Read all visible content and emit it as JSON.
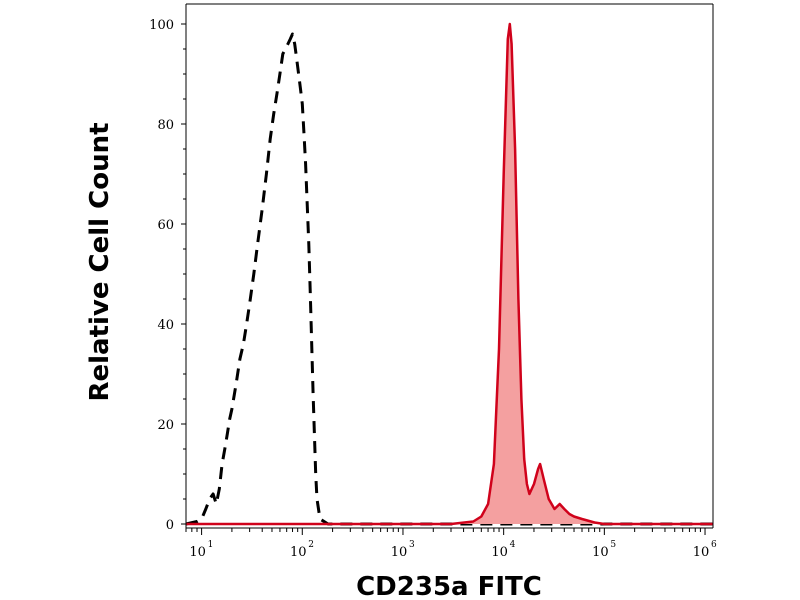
{
  "chart_data": {
    "type": "area",
    "title": "",
    "xlabel": "CD235a FITC",
    "ylabel": "Relative Cell Count",
    "x_scale": "log",
    "xlim": [
      7,
      1200000
    ],
    "ylim": [
      0,
      100
    ],
    "grid": false,
    "legend": "none",
    "x_ticks": [
      {
        "value": 10,
        "base": "10",
        "exp": "1"
      },
      {
        "value": 100,
        "base": "10",
        "exp": "2"
      },
      {
        "value": 1000,
        "base": "10",
        "exp": "3"
      },
      {
        "value": 10000,
        "base": "10",
        "exp": "4"
      },
      {
        "value": 100000,
        "base": "10",
        "exp": "5"
      },
      {
        "value": 1000000,
        "base": "10",
        "exp": "6"
      }
    ],
    "y_ticks": [
      "0",
      "20",
      "40",
      "60",
      "80",
      "100"
    ],
    "series": [
      {
        "style": "dashed-outline",
        "color": "#000000",
        "points": [
          [
            7,
            0
          ],
          [
            9,
            0.5
          ],
          [
            10,
            1
          ],
          [
            11,
            3
          ],
          [
            12,
            5
          ],
          [
            13,
            6
          ],
          [
            14,
            4
          ],
          [
            15,
            7
          ],
          [
            16,
            12
          ],
          [
            17,
            15
          ],
          [
            18,
            18
          ],
          [
            19,
            21
          ],
          [
            20,
            23
          ],
          [
            22,
            28
          ],
          [
            24,
            33
          ],
          [
            26,
            36
          ],
          [
            28,
            40
          ],
          [
            30,
            44
          ],
          [
            33,
            50
          ],
          [
            36,
            56
          ],
          [
            40,
            63
          ],
          [
            44,
            70
          ],
          [
            48,
            77
          ],
          [
            52,
            82
          ],
          [
            56,
            86
          ],
          [
            60,
            90
          ],
          [
            64,
            94
          ],
          [
            68,
            95
          ],
          [
            72,
            96
          ],
          [
            76,
            97
          ],
          [
            80,
            98
          ],
          [
            84,
            96
          ],
          [
            88,
            93
          ],
          [
            92,
            90
          ],
          [
            96,
            87
          ],
          [
            100,
            84
          ],
          [
            104,
            78
          ],
          [
            108,
            72
          ],
          [
            112,
            64
          ],
          [
            116,
            56
          ],
          [
            120,
            46
          ],
          [
            124,
            36
          ],
          [
            128,
            26
          ],
          [
            132,
            18
          ],
          [
            136,
            10
          ],
          [
            140,
            5
          ],
          [
            150,
            1
          ],
          [
            180,
            0
          ],
          [
            1200000,
            0
          ]
        ]
      },
      {
        "style": "filled",
        "color": "#d0021b",
        "fill": "#f4a0a0",
        "points": [
          [
            7,
            0
          ],
          [
            3000,
            0
          ],
          [
            5000,
            0.5
          ],
          [
            6000,
            1.5
          ],
          [
            7000,
            4
          ],
          [
            8000,
            12
          ],
          [
            9000,
            35
          ],
          [
            10000,
            70
          ],
          [
            11000,
            97
          ],
          [
            11500,
            100
          ],
          [
            12000,
            96
          ],
          [
            13000,
            75
          ],
          [
            14000,
            45
          ],
          [
            15000,
            25
          ],
          [
            16000,
            13
          ],
          [
            17000,
            8
          ],
          [
            18000,
            6
          ],
          [
            20000,
            8
          ],
          [
            22000,
            11
          ],
          [
            23000,
            12
          ],
          [
            25000,
            9
          ],
          [
            28000,
            5
          ],
          [
            32000,
            3
          ],
          [
            36000,
            4
          ],
          [
            40000,
            3
          ],
          [
            45000,
            2
          ],
          [
            50000,
            1.5
          ],
          [
            60000,
            1
          ],
          [
            80000,
            0.3
          ],
          [
            100000,
            0
          ],
          [
            1200000,
            0
          ]
        ]
      }
    ]
  }
}
